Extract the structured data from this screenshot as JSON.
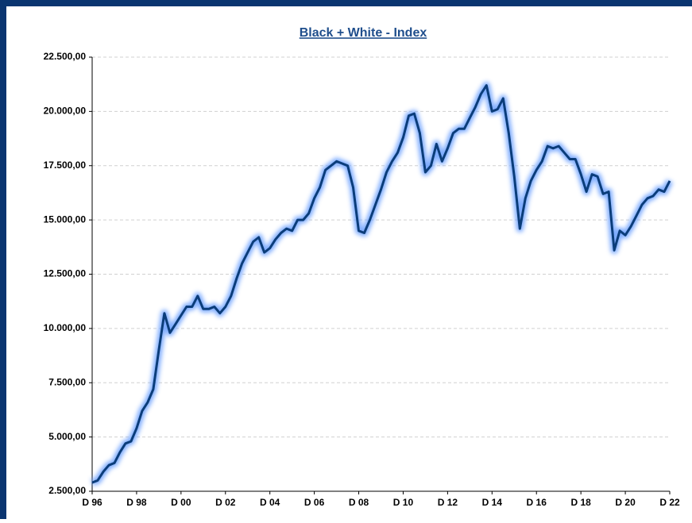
{
  "chart_data": {
    "type": "line",
    "title": "Black + White - Index",
    "categories": [
      "D 96",
      null,
      null,
      null,
      null,
      null,
      null,
      null,
      "D 98",
      null,
      null,
      null,
      null,
      null,
      null,
      null,
      "D 00",
      null,
      null,
      null,
      null,
      null,
      null,
      null,
      "D 02",
      null,
      null,
      null,
      null,
      null,
      null,
      null,
      "D 04",
      null,
      null,
      null,
      null,
      null,
      null,
      null,
      "D 06",
      null,
      null,
      null,
      null,
      null,
      null,
      null,
      "D 08",
      null,
      null,
      null,
      null,
      null,
      null,
      null,
      "D 10",
      null,
      null,
      null,
      null,
      null,
      null,
      null,
      "D 12",
      null,
      null,
      null,
      null,
      null,
      null,
      null,
      "D 14",
      null,
      null,
      null,
      null,
      null,
      null,
      null,
      "D 16",
      null,
      null,
      null,
      null,
      null,
      null,
      null,
      "D 18",
      null,
      null,
      null,
      null,
      null,
      null,
      null,
      "D 20",
      null,
      null,
      null,
      null,
      null,
      null,
      null,
      "D 22"
    ],
    "values": [
      2900,
      3000,
      3400,
      3700,
      3800,
      4300,
      4700,
      4800,
      5400,
      6200,
      6600,
      7200,
      9000,
      10700,
      9800,
      10200,
      10600,
      11000,
      11000,
      11500,
      10900,
      10900,
      11000,
      10700,
      11000,
      11500,
      12300,
      13000,
      13500,
      14000,
      14200,
      13500,
      13700,
      14100,
      14400,
      14600,
      14500,
      15000,
      15000,
      15300,
      16000,
      16500,
      17300,
      17500,
      17700,
      17600,
      17500,
      16500,
      14500,
      14400,
      15000,
      15700,
      16400,
      17200,
      17700,
      18100,
      18800,
      19800,
      19900,
      19000,
      17200,
      17500,
      18500,
      17700,
      18300,
      19000,
      19200,
      19200,
      19700,
      20200,
      20800,
      21200,
      20000,
      20100,
      20600,
      19000,
      17000,
      14600,
      16000,
      16800,
      17300,
      17700,
      18400,
      18300,
      18400,
      18100,
      17800,
      17800,
      17100,
      16300,
      17100,
      17000,
      16200,
      16300,
      13600,
      14500,
      14300,
      14700,
      15200,
      15700,
      16000,
      16100,
      16400,
      16300,
      16800
    ],
    "color": "#0b3d7a",
    "glow_color": "#6fa3ff",
    "ylim": [
      2500,
      22500
    ],
    "yticks": [
      {
        "value": 2500,
        "label": "2.500,00"
      },
      {
        "value": 5000,
        "label": "5.000,00"
      },
      {
        "value": 7500,
        "label": "7.500,00"
      },
      {
        "value": 10000,
        "label": "10.000,00"
      },
      {
        "value": 12500,
        "label": "12.500,00"
      },
      {
        "value": 15000,
        "label": "15.000,00"
      },
      {
        "value": 17500,
        "label": "17.500,00"
      },
      {
        "value": 20000,
        "label": "20.000,00"
      },
      {
        "value": 22500,
        "label": "22.500,00"
      }
    ],
    "grid": true
  }
}
